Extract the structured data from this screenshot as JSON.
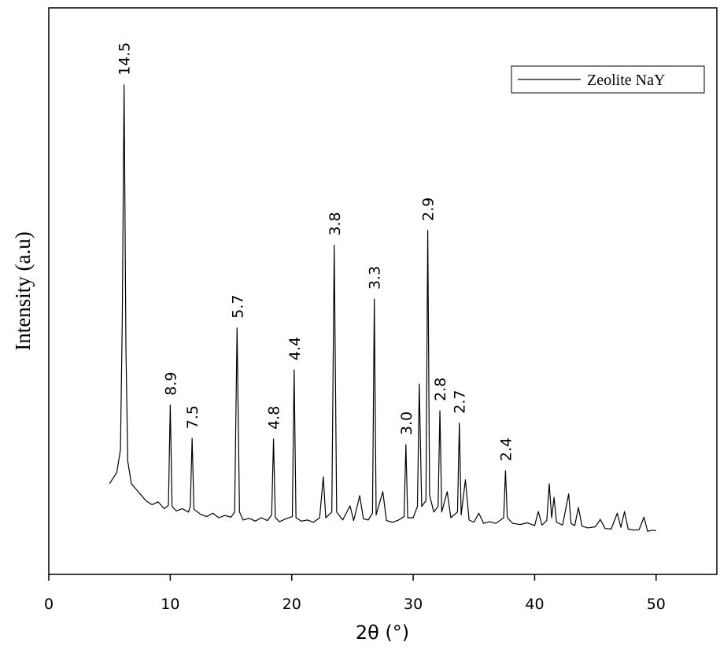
{
  "chart_data": {
    "type": "line",
    "xlabel": "2θ (°)",
    "ylabel": "Intensity (a.u)",
    "xlim": [
      0,
      55
    ],
    "xticks": [
      0,
      10,
      20,
      30,
      40,
      50
    ],
    "ylim": [
      0,
      100
    ],
    "legend": "upper right",
    "x": [
      5.0,
      5.3,
      5.6,
      5.9,
      6.05,
      6.2,
      6.35,
      6.5,
      6.8,
      7.2,
      7.6,
      8.0,
      8.5,
      9.0,
      9.5,
      9.85,
      10.0,
      10.15,
      10.5,
      11.0,
      11.5,
      11.65,
      11.8,
      11.95,
      12.5,
      13.0,
      13.5,
      14.0,
      14.5,
      15.0,
      15.3,
      15.5,
      15.7,
      16.0,
      16.5,
      17.0,
      17.5,
      18.0,
      18.35,
      18.5,
      18.65,
      19.0,
      19.5,
      20.05,
      20.2,
      20.35,
      20.8,
      21.3,
      21.8,
      22.3,
      22.6,
      22.8,
      23.3,
      23.5,
      23.7,
      24.2,
      24.8,
      25.1,
      25.6,
      25.9,
      26.3,
      26.65,
      26.8,
      26.95,
      27.5,
      27.8,
      28.3,
      28.8,
      29.25,
      29.4,
      29.55,
      30.0,
      30.35,
      30.5,
      30.7,
      31.05,
      31.2,
      31.35,
      31.7,
      32.05,
      32.2,
      32.35,
      32.8,
      33.1,
      33.65,
      33.8,
      33.95,
      34.3,
      34.6,
      35.0,
      35.4,
      35.8,
      36.3,
      36.8,
      37.45,
      37.6,
      37.75,
      38.2,
      38.8,
      39.4,
      40.0,
      40.3,
      40.6,
      41.0,
      41.2,
      41.4,
      41.6,
      41.8,
      42.3,
      42.8,
      43.0,
      43.3,
      43.6,
      43.9,
      44.4,
      45.0,
      45.4,
      45.8,
      46.3,
      46.8,
      47.1,
      47.4,
      47.7,
      48.2,
      48.6,
      49.0,
      49.3,
      49.7,
      50.0
    ],
    "series": [
      {
        "name": "Zeolite NaY",
        "color": "#000000",
        "values": [
          16,
          17,
          18,
          22,
          45,
          86.4,
          40,
          20,
          16,
          15,
          14,
          13,
          12.3,
          12.8,
          11.6,
          12.2,
          29.9,
          12,
          11.2,
          11.6,
          11.0,
          12,
          24.0,
          11.5,
          10.6,
          10.2,
          10.8,
          10.0,
          10.4,
          10.1,
          11,
          43.5,
          11,
          9.6,
          9.9,
          9.4,
          10.0,
          9.5,
          10.5,
          23.9,
          10,
          9.3,
          9.8,
          10.2,
          36.1,
          10,
          9.4,
          9.6,
          9.2,
          10,
          17.2,
          10,
          11,
          58.1,
          11,
          9.6,
          12.1,
          9.5,
          13.9,
          9.8,
          9.6,
          10.8,
          48.6,
          10.5,
          14.6,
          9.5,
          9.2,
          9.6,
          10.2,
          22.9,
          10,
          10,
          12,
          33.6,
          12,
          13,
          60.7,
          14,
          11,
          12,
          28.9,
          11,
          14.6,
          10,
          11,
          26.7,
          10.5,
          16.7,
          9.6,
          9.2,
          10.8,
          9.0,
          9.3,
          9.0,
          10,
          18.3,
          10,
          9.0,
          8.8,
          9.1,
          8.6,
          11.1,
          8.7,
          9.5,
          16.0,
          10,
          13.6,
          9.2,
          8.7,
          14.2,
          9,
          8.6,
          11.8,
          8.5,
          8.2,
          8.4,
          9.7,
          8.1,
          8.0,
          10.8,
          8.3,
          11.1,
          8.0,
          7.8,
          7.9,
          10.1,
          7.6,
          7.8,
          7.7
        ]
      }
    ],
    "annotations": [
      {
        "text": "14.5",
        "x": 6.2
      },
      {
        "text": "8.9",
        "x": 10.0
      },
      {
        "text": "7.5",
        "x": 11.8
      },
      {
        "text": "5.7",
        "x": 15.5
      },
      {
        "text": "4.8",
        "x": 18.5
      },
      {
        "text": "4.4",
        "x": 20.2
      },
      {
        "text": "3.8",
        "x": 23.5
      },
      {
        "text": "3.3",
        "x": 26.8
      },
      {
        "text": "3.0",
        "x": 29.4
      },
      {
        "text": "2.9",
        "x": 31.2
      },
      {
        "text": "2.8",
        "x": 32.2
      },
      {
        "text": "2.7",
        "x": 33.8
      },
      {
        "text": "2.4",
        "x": 37.6
      }
    ]
  }
}
